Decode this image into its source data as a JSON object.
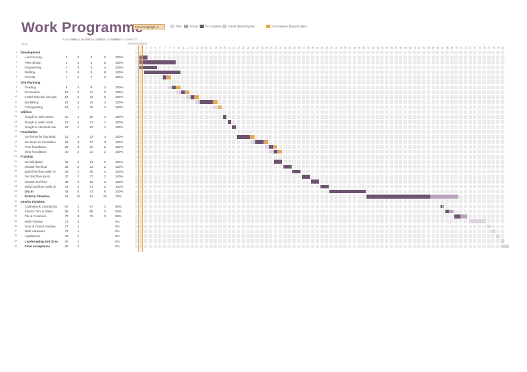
{
  "title": "Work Programme",
  "period_highlight": "Period Highlight: 1",
  "legend": [
    {
      "label": "Plan",
      "color": "#ddd3df"
    },
    {
      "label": "Actual",
      "color": "#b9a4bc"
    },
    {
      "label": "% Complete",
      "color": "#6e5371"
    },
    {
      "label": "Actual (beyond plan)",
      "color": "#d9c2c6"
    },
    {
      "label": "% Complete (beyond plan)",
      "color": "#e8a94b"
    }
  ],
  "headers": {
    "task": "TASK",
    "plan_start": "PLAN START",
    "plan_duration": "PLAN DURATION",
    "actual_start": "ACTUAL START",
    "actual_duration": "ACTUAL DURATION",
    "percent_complete": "PERCENT COMPLETE",
    "periods": "PERIODS (WEEK)"
  },
  "weeks": [
    1,
    2,
    3,
    4,
    5,
    6,
    7,
    8,
    9,
    10,
    11,
    12,
    13,
    14,
    15,
    16,
    17,
    18,
    19,
    20,
    21,
    22,
    23,
    24,
    25,
    26,
    27,
    28,
    29,
    30,
    31,
    32,
    33,
    34,
    35,
    36,
    37,
    38,
    39,
    40,
    41,
    42,
    43,
    44,
    45,
    46,
    47,
    48,
    49,
    50,
    51,
    52,
    53,
    54,
    55,
    56,
    57,
    58,
    59,
    60,
    61,
    62,
    63,
    64,
    65,
    66,
    67,
    68,
    69,
    70,
    71,
    72,
    73,
    74,
    75,
    76,
    77,
    78,
    79,
    80
  ],
  "rows": [
    {
      "id": "1",
      "name": "Development",
      "group": true
    },
    {
      "id": "2",
      "name": "Land Survey",
      "ps": "2",
      "pd": "2",
      "as": "2",
      "ad": "2",
      "pc": "100%"
    },
    {
      "id": "3",
      "name": "Plan design",
      "ps": "2",
      "pd": "8",
      "as": "2",
      "ad": "8",
      "pc": "100%"
    },
    {
      "id": "4",
      "name": "Engineering",
      "ps": "2",
      "pd": "4",
      "as": "2",
      "ad": "4",
      "pc": "100%"
    },
    {
      "id": "5",
      "name": "Bidding",
      "ps": "3",
      "pd": "8",
      "as": "3",
      "ad": "8",
      "pc": "100%"
    },
    {
      "id": "6",
      "name": "Permits",
      "ps": "7",
      "pd": "1",
      "as": "7",
      "ad": "2",
      "pc": "100%"
    },
    {
      "id": "7",
      "name": "Site Planning",
      "group": true
    },
    {
      "id": "8",
      "name": "Grading",
      "ps": "8",
      "pd": "2",
      "as": "9",
      "ad": "2",
      "pc": "100%"
    },
    {
      "id": "9",
      "name": "Excavation",
      "ps": "10",
      "pd": "2",
      "as": "11",
      "ad": "2",
      "pc": "100%"
    },
    {
      "id": "10",
      "name": "Install drain tile and gra",
      "ps": "12",
      "pd": "2",
      "as": "13",
      "ad": "2",
      "pc": "100%"
    },
    {
      "id": "11",
      "name": "Backfilling",
      "ps": "14",
      "pd": "4",
      "as": "15",
      "ad": "4",
      "pc": "100%"
    },
    {
      "id": "12",
      "name": "Final grading",
      "ps": "18",
      "pd": "1",
      "as": "19",
      "ad": "1",
      "pc": "100%"
    },
    {
      "id": "13",
      "name": "Utilities",
      "group": true
    },
    {
      "id": "14",
      "name": "Rough in main sewer",
      "ps": "20",
      "pd": "1",
      "as": "20",
      "ad": "1",
      "pc": "100%"
    },
    {
      "id": "15",
      "name": "Rough in water main",
      "ps": "21",
      "pd": "1",
      "as": "21",
      "ad": "1",
      "pc": "100%"
    },
    {
      "id": "16",
      "name": "Rough in electrical mai",
      "ps": "22",
      "pd": "1",
      "as": "22",
      "ad": "1",
      "pc": "100%"
    },
    {
      "id": "17",
      "name": "Foundation",
      "group": true
    },
    {
      "id": "18",
      "name": "Set forms for foundatio",
      "ps": "23",
      "pd": "3",
      "as": "23",
      "ad": "4",
      "pc": "100%"
    },
    {
      "id": "19",
      "name": "Set steel for foundatior",
      "ps": "26",
      "pd": "3",
      "as": "27",
      "ad": "3",
      "pc": "100%"
    },
    {
      "id": "20",
      "name": "Pour foundation",
      "ps": "29",
      "pd": "2",
      "as": "30",
      "ad": "2",
      "pc": "100%"
    },
    {
      "id": "21",
      "name": "Strip foundation",
      "ps": "30",
      "pd": "2",
      "as": "31",
      "ad": "2",
      "pc": "100%"
    },
    {
      "id": "22",
      "name": "Framing",
      "group": true
    },
    {
      "id": "23",
      "name": "Set sill plates",
      "ps": "31",
      "pd": "2",
      "as": "31",
      "ad": "2",
      "pc": "100%"
    },
    {
      "id": "24",
      "name": "Sheath first floor",
      "ps": "33",
      "pd": "2",
      "as": "33",
      "ad": "2",
      "pc": "100%"
    },
    {
      "id": "25",
      "name": "Build first floor walls (e",
      "ps": "35",
      "pd": "2",
      "as": "35",
      "ad": "2",
      "pc": "100%"
    },
    {
      "id": "26",
      "name": "Set 2nd floor joists",
      "ps": "37",
      "pd": "2",
      "as": "37",
      "ad": "2",
      "pc": "100%"
    },
    {
      "id": "27",
      "name": "Sheath 2nd floor",
      "ps": "39",
      "pd": "2",
      "as": "39",
      "ad": "2",
      "pc": "100%"
    },
    {
      "id": "28",
      "name": "Build 2nd floor walls (e",
      "ps": "41",
      "pd": "2",
      "as": "41",
      "ad": "2",
      "pc": "100%"
    },
    {
      "id": "29",
      "name": "Dry In",
      "ps": "43",
      "pd": "8",
      "as": "43",
      "ad": "8",
      "pc": "100%",
      "bold": true
    },
    {
      "id": "30",
      "name": "Exterior Finishes",
      "ps": "51",
      "pd": "16",
      "as": "51",
      "ad": "20",
      "pc": "70%",
      "bold": true
    },
    {
      "id": "31",
      "name": "Interior Finishes",
      "group": true
    },
    {
      "id": "32",
      "name": "Cabinetry & Countertop",
      "ps": "67",
      "pd": "1",
      "as": "67",
      "ad": "1",
      "pc": "50%"
    },
    {
      "id": "33",
      "name": "Interior Trim & Stairs",
      "ps": "68",
      "pd": "2",
      "as": "68",
      "ad": "2",
      "pc": "50%"
    },
    {
      "id": "34",
      "name": "Tile & Ceramics",
      "ps": "70",
      "pd": "3",
      "as": "70",
      "ad": "3",
      "pc": "50%"
    },
    {
      "id": "35",
      "name": "Wall Finishes",
      "ps": "73",
      "pd": "4",
      "as": "",
      "ad": "",
      "pc": "0%"
    },
    {
      "id": "36",
      "name": "Door & Closet Hardwa",
      "ps": "77",
      "pd": "1",
      "as": "",
      "ad": "",
      "pc": "0%"
    },
    {
      "id": "37",
      "name": "Bath Hardware",
      "ps": "78",
      "pd": "1",
      "as": "",
      "ad": "",
      "pc": "0%"
    },
    {
      "id": "38",
      "name": "Appliances",
      "ps": "79",
      "pd": "1",
      "as": "",
      "ad": "",
      "pc": "0%"
    },
    {
      "id": "39",
      "name": "Landscaping and Grou",
      "ps": "80",
      "pd": "1",
      "as": "",
      "ad": "",
      "pc": "0%",
      "bold": true
    },
    {
      "id": "40",
      "name": "Final Acceptance",
      "ps": "80",
      "pd": "2",
      "as": "",
      "ad": "",
      "pc": "0%",
      "bold": true
    }
  ]
}
